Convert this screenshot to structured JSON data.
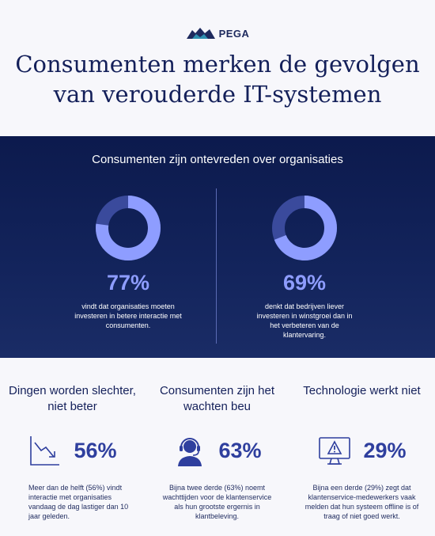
{
  "logo": {
    "text": "PEGA",
    "icon": "pega-logo-mark"
  },
  "headline": {
    "line1": "Consumenten merken de gevolgen",
    "line2": "van verouderde IT-systemen"
  },
  "band": {
    "title": "Consumenten zijn ontevreden over organisaties",
    "stats": [
      {
        "value": "77%",
        "percent": 77,
        "description": "vindt dat organisaties moeten investeren in betere interactie met consumenten."
      },
      {
        "value": "69%",
        "percent": 69,
        "description": "denkt dat bedrijven liever investeren in winstgroei dan in het verbeteren van de klantervaring."
      }
    ],
    "colors": {
      "background": "#0c1a4d",
      "ring_fill": "#8e9dff",
      "ring_track": "#3a4a9c"
    }
  },
  "columns": [
    {
      "title": "Dingen worden slechter, niet beter",
      "value": "56%",
      "icon": "trend-down-icon",
      "description": "Meer dan de helft (56%) vindt interactie met organisaties vandaag de dag lastiger dan 10 jaar geleden."
    },
    {
      "title": "Consumenten zijn het wachten beu",
      "value": "63%",
      "icon": "headset-agent-icon",
      "description": "Bijna twee derde (63%) noemt wachttijden voor de klantenservice als hun grootste ergernis in klantbeleving."
    },
    {
      "title": "Technologie werkt niet",
      "value": "29%",
      "icon": "warning-monitor-icon",
      "description": "Bijna een derde (29%) zegt dat klantenservice-medewerkers vaak melden dat hun systeem offline is of traag of niet goed werkt."
    }
  ]
}
